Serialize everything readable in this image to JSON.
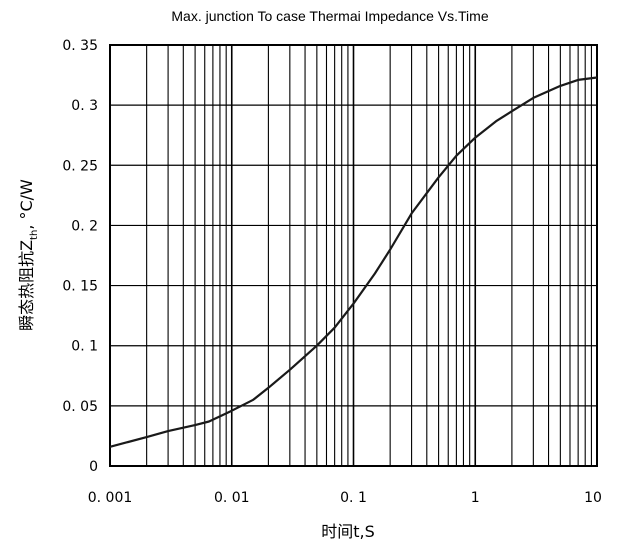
{
  "chart_data": {
    "type": "line",
    "title": "Max. junction To case Thermai Impedance Vs.Time",
    "xlabel": "时间t,S",
    "ylabel": {
      "prefix": "瞬态热阻抗Z",
      "sub": "th",
      "suffix": ", °C/W"
    },
    "xscale": "log",
    "xlim": [
      0.001,
      10
    ],
    "ylim": [
      0,
      0.35
    ],
    "grid": true,
    "x_ticks": [
      0.001,
      0.01,
      0.1,
      1,
      10
    ],
    "x_tick_labels": [
      "0. 001",
      "0. 01",
      "0. 1",
      "1",
      "10"
    ],
    "y_ticks": [
      0,
      0.05,
      0.1,
      0.15,
      0.2,
      0.25,
      0.3,
      0.35
    ],
    "y_tick_labels": [
      "0",
      "0. 05",
      "0. 1",
      "0. 15",
      "0. 2",
      "0. 25",
      "0. 3",
      "0. 35"
    ],
    "series": [
      {
        "x": [
          0.001,
          0.002,
          0.003,
          0.005,
          0.0065,
          0.01,
          0.015,
          0.02,
          0.03,
          0.05,
          0.07,
          0.1,
          0.15,
          0.2,
          0.3,
          0.5,
          0.7,
          1,
          1.5,
          2,
          3,
          5,
          7,
          10
        ],
        "y": [
          0.016,
          0.024,
          0.029,
          0.034,
          0.037,
          0.046,
          0.055,
          0.065,
          0.08,
          0.1,
          0.115,
          0.135,
          0.16,
          0.18,
          0.21,
          0.24,
          0.258,
          0.273,
          0.287,
          0.295,
          0.306,
          0.316,
          0.321,
          0.323
        ],
        "color": "#1a1a1a"
      }
    ]
  }
}
